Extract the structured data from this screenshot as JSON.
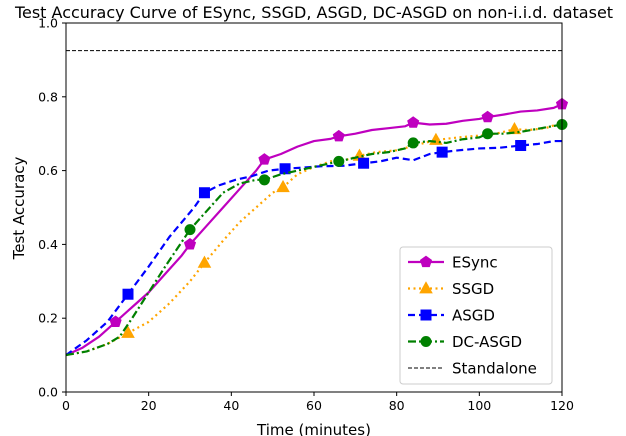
{
  "chart_data": {
    "type": "line",
    "title": "Test Accuracy Curve of ESync, SSGD, ASGD, DC-ASGD on non-i.i.d. dataset",
    "xlabel": "Time (minutes)",
    "ylabel": "Test Accuracy",
    "xlim": [
      0,
      120
    ],
    "ylim": [
      0.0,
      1.0
    ],
    "xticks": [
      "0",
      "20",
      "40",
      "60",
      "80",
      "100",
      "120"
    ],
    "yticks": [
      "0.0",
      "0.2",
      "0.4",
      "0.6",
      "0.8",
      "1.0"
    ],
    "grid": false,
    "legend_position": "lower-right",
    "series": [
      {
        "name": "ESync",
        "color": "#bf00bf",
        "linestyle": "solid",
        "marker": "pentagon",
        "x": [
          0,
          4,
          8,
          12,
          16,
          20,
          24,
          28,
          30,
          34,
          38,
          42,
          46,
          48,
          52,
          56,
          60,
          64,
          66,
          70,
          74,
          78,
          82,
          84,
          88,
          92,
          96,
          100,
          102,
          106,
          110,
          114,
          118,
          120
        ],
        "y": [
          0.1,
          0.12,
          0.15,
          0.19,
          0.23,
          0.27,
          0.32,
          0.37,
          0.4,
          0.45,
          0.5,
          0.55,
          0.6,
          0.63,
          0.645,
          0.665,
          0.68,
          0.686,
          0.693,
          0.7,
          0.71,
          0.715,
          0.72,
          0.73,
          0.725,
          0.727,
          0.735,
          0.74,
          0.745,
          0.752,
          0.76,
          0.763,
          0.77,
          0.78
        ],
        "marker_x": [
          12,
          30,
          48,
          66,
          84,
          102,
          120
        ],
        "marker_y": [
          0.19,
          0.4,
          0.63,
          0.693,
          0.73,
          0.745,
          0.78
        ]
      },
      {
        "name": "SSGD",
        "color": "#ffa500",
        "linestyle": "dotted",
        "marker": "triangle",
        "x": [
          0,
          5,
          10,
          15,
          20,
          25,
          30,
          33.5,
          38,
          42,
          46,
          50,
          52.5,
          56,
          60,
          64,
          68,
          71,
          75,
          80,
          85,
          89.5,
          95,
          100,
          104,
          108.5,
          112,
          116,
          120
        ],
        "y": [
          0.1,
          0.11,
          0.13,
          0.16,
          0.19,
          0.24,
          0.3,
          0.35,
          0.41,
          0.46,
          0.5,
          0.54,
          0.555,
          0.59,
          0.61,
          0.625,
          0.63,
          0.64,
          0.65,
          0.655,
          0.67,
          0.683,
          0.69,
          0.695,
          0.7,
          0.712,
          0.71,
          0.715,
          0.73
        ],
        "marker_x": [
          15,
          33.5,
          52.5,
          71,
          89.5,
          108.5
        ],
        "marker_y": [
          0.16,
          0.35,
          0.555,
          0.64,
          0.683,
          0.712
        ]
      },
      {
        "name": "ASGD",
        "color": "#0000ff",
        "linestyle": "dashed",
        "marker": "square",
        "x": [
          0,
          5,
          10,
          15,
          20,
          25,
          28,
          31,
          33.5,
          37,
          41,
          45,
          49,
          53,
          57,
          62,
          67,
          72,
          76,
          80,
          84,
          88,
          91,
          95,
          100,
          105,
          110,
          114,
          118,
          120
        ],
        "y": [
          0.1,
          0.14,
          0.19,
          0.265,
          0.34,
          0.42,
          0.46,
          0.5,
          0.54,
          0.56,
          0.575,
          0.585,
          0.6,
          0.605,
          0.608,
          0.612,
          0.613,
          0.62,
          0.625,
          0.635,
          0.628,
          0.645,
          0.65,
          0.655,
          0.66,
          0.662,
          0.668,
          0.672,
          0.68,
          0.68
        ],
        "marker_x": [
          15,
          33.5,
          53,
          72,
          91,
          110
        ],
        "marker_y": [
          0.265,
          0.54,
          0.605,
          0.62,
          0.65,
          0.668
        ]
      },
      {
        "name": "DC-ASGD",
        "color": "#008000",
        "linestyle": "dashdot",
        "marker": "circle",
        "x": [
          0,
          5,
          10,
          13,
          16,
          20,
          24,
          27,
          30,
          34,
          38,
          42,
          46,
          48,
          52,
          56,
          60,
          64,
          66,
          70,
          74,
          78,
          82,
          84,
          88,
          92,
          96,
          100,
          102,
          106,
          110,
          115,
          120
        ],
        "y": [
          0.1,
          0.11,
          0.13,
          0.15,
          0.2,
          0.27,
          0.34,
          0.39,
          0.44,
          0.49,
          0.54,
          0.565,
          0.575,
          0.575,
          0.59,
          0.6,
          0.61,
          0.62,
          0.625,
          0.635,
          0.645,
          0.65,
          0.66,
          0.675,
          0.68,
          0.675,
          0.685,
          0.69,
          0.7,
          0.7,
          0.705,
          0.715,
          0.725
        ],
        "marker_x": [
          30,
          48,
          66,
          84,
          102,
          120
        ],
        "marker_y": [
          0.44,
          0.575,
          0.625,
          0.675,
          0.7,
          0.725
        ]
      },
      {
        "name": "Standalone",
        "color": "#000000",
        "linestyle": "dashed",
        "marker": "none",
        "x": [
          0,
          120
        ],
        "y": [
          0.925,
          0.925
        ]
      }
    ]
  }
}
